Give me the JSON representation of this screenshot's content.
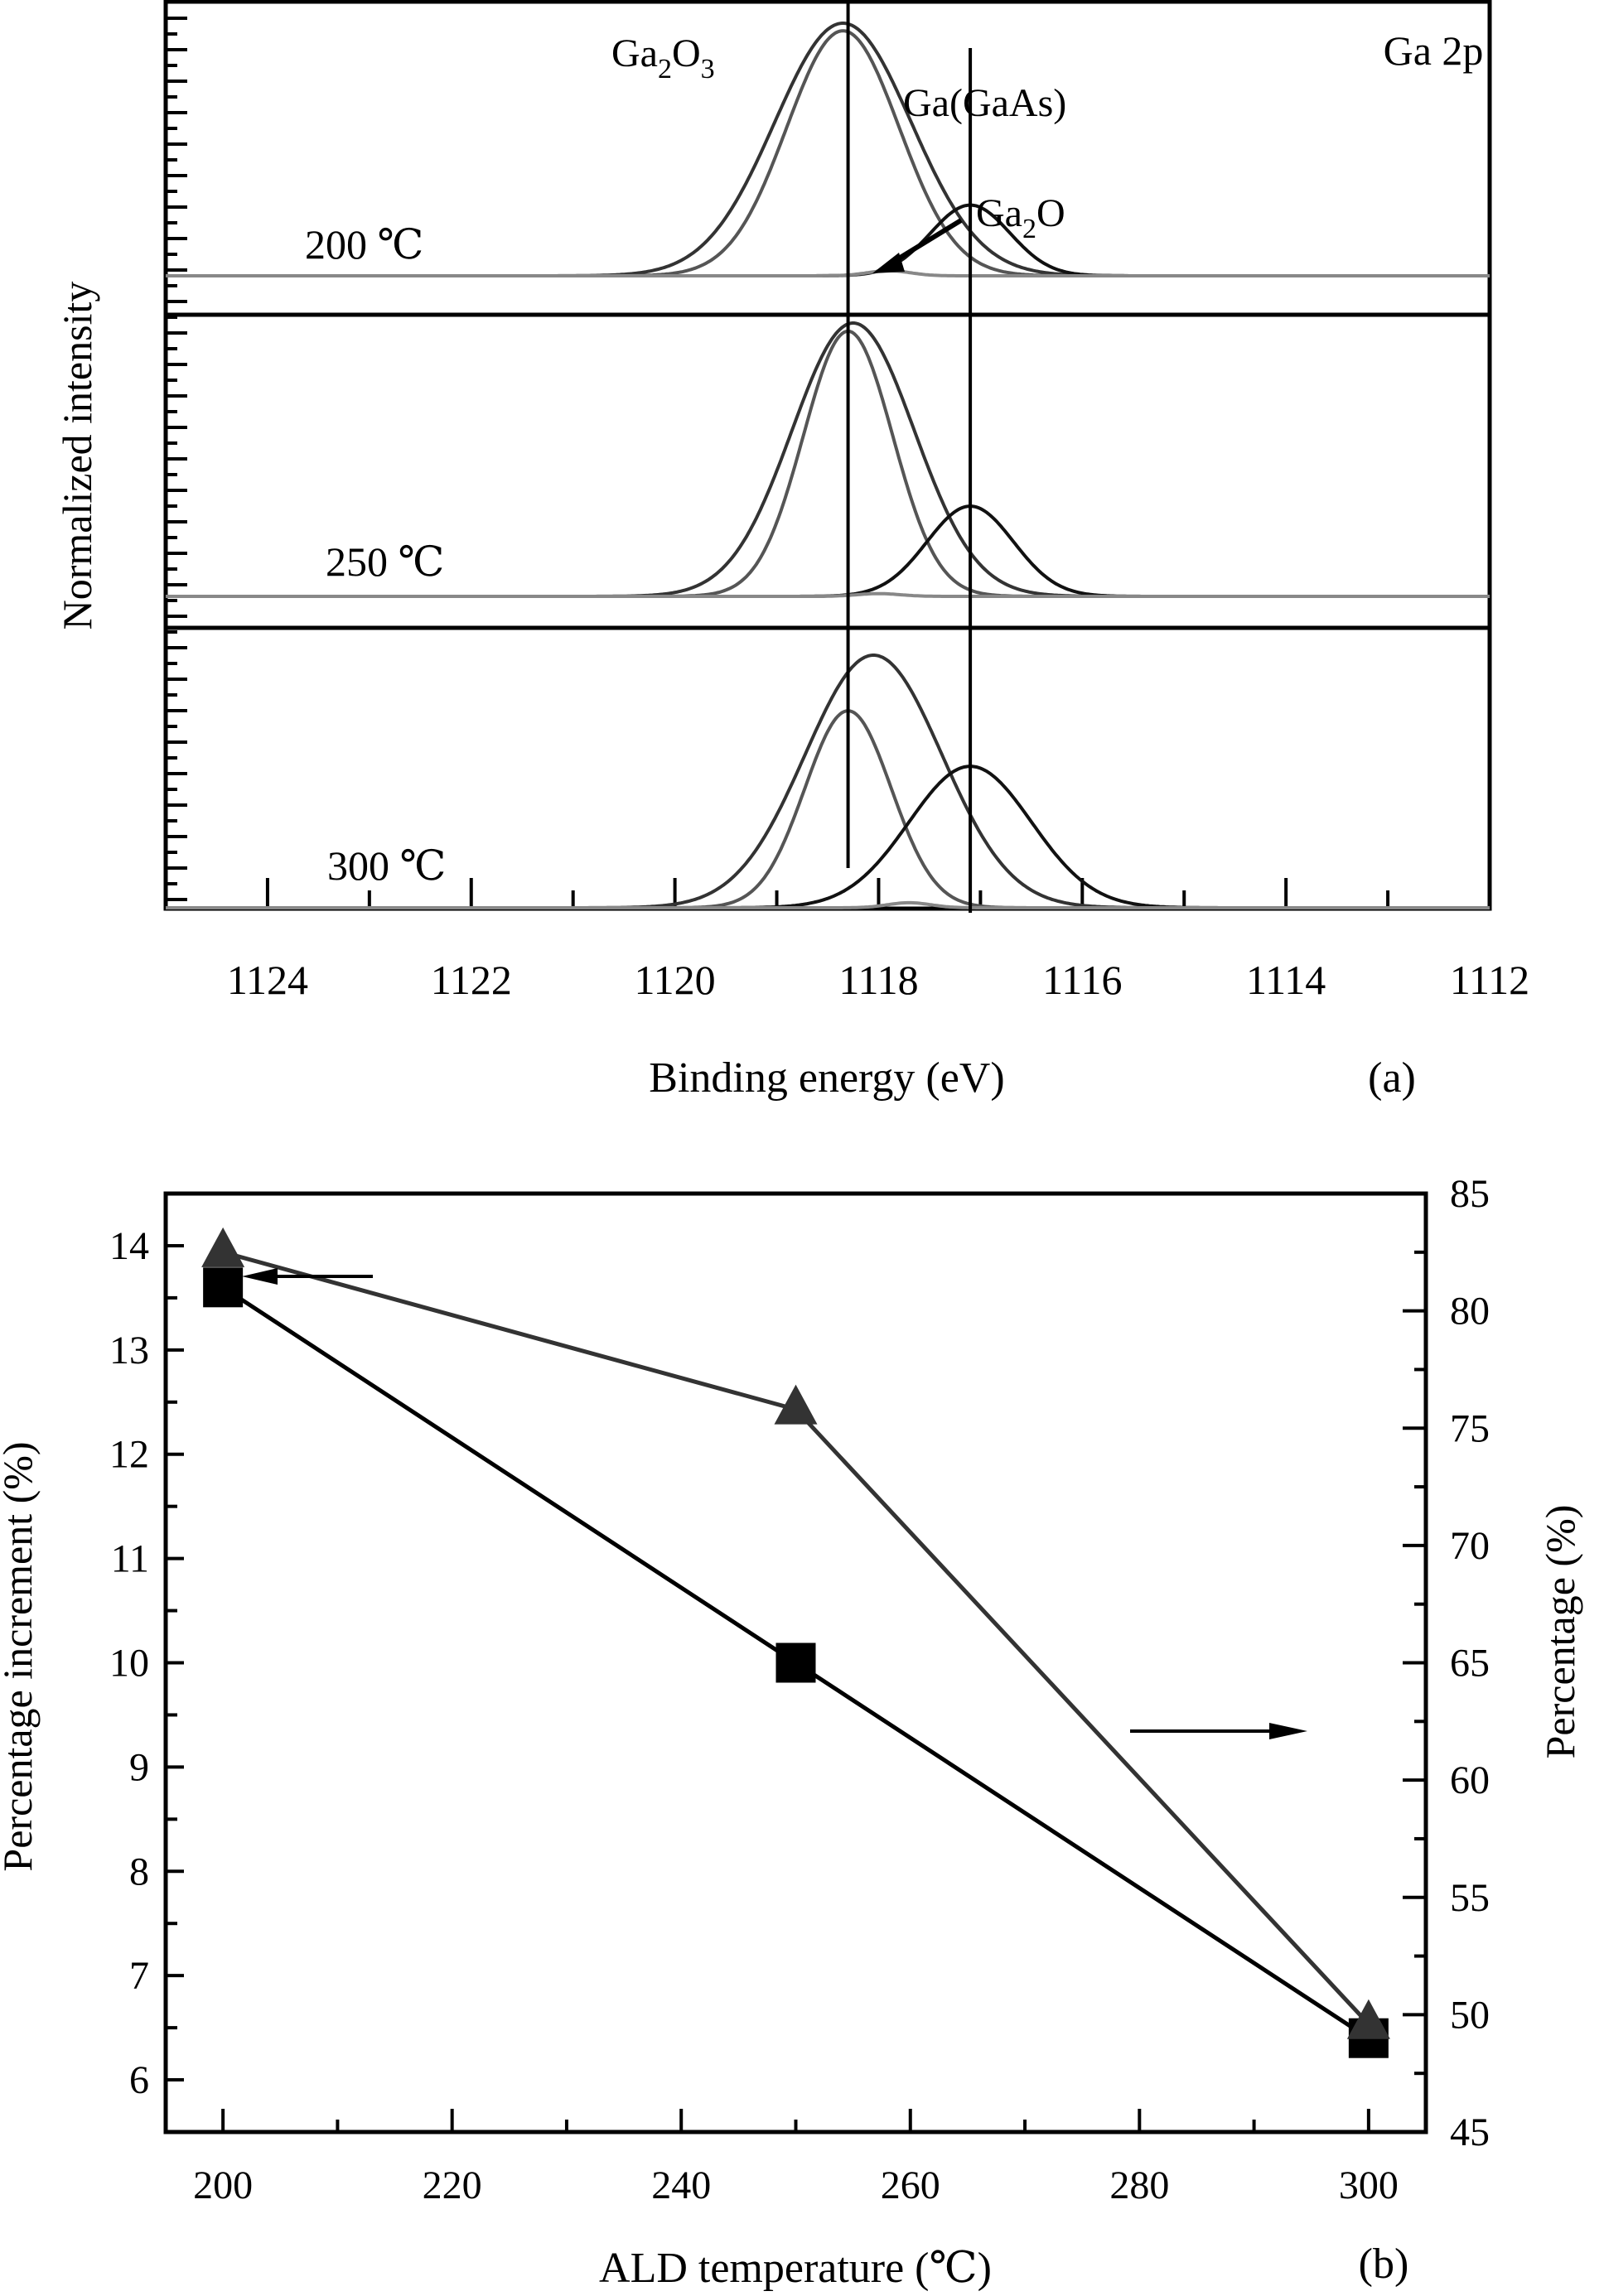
{
  "chart_data": [
    {
      "id": "a",
      "type": "line",
      "panel_label": "(a)",
      "title": "Ga 2p",
      "xlabel": "Binding energy  (eV)",
      "ylabel": "Normalized intensity",
      "xlim": [
        1125,
        1112
      ],
      "x_ticks": [
        "1124",
        "1122",
        "1120",
        "1118",
        "1116",
        "1114",
        "1112"
      ],
      "x_tick_values": [
        1124,
        1122,
        1120,
        1118,
        1116,
        1114,
        1112
      ],
      "reference_lines": [
        {
          "name": "Ga2O3",
          "x": 1118.3
        },
        {
          "name": "Ga(GaAs)",
          "x": 1117.1
        }
      ],
      "annotations": [
        {
          "text": "Ga",
          "sub": "2",
          "text2": "O",
          "sub2": "3",
          "label": "Ga2O3"
        },
        {
          "text": "Ga(GaAs)",
          "label": "Ga(GaAs)"
        },
        {
          "text": "Ga",
          "sub": "2",
          "text2": "O",
          "label": "Ga2O"
        }
      ],
      "panels": [
        {
          "label": "200 ℃",
          "series": [
            {
              "name": "envelope",
              "color": "#333333",
              "center": 1118.35,
              "height": 1.0,
              "width": 0.95
            },
            {
              "name": "Ga2O3",
              "color": "#555555",
              "center": 1118.35,
              "height": 0.97,
              "width": 0.78
            },
            {
              "name": "Ga(GaAs)",
              "color": "#111111",
              "center": 1117.1,
              "height": 0.28,
              "width": 0.55
            },
            {
              "name": "Ga2O",
              "color": "#888888",
              "center": 1117.9,
              "height": 0.02,
              "width": 0.3
            }
          ]
        },
        {
          "label": "250 ℃",
          "series": [
            {
              "name": "envelope",
              "color": "#333333",
              "center": 1118.25,
              "height": 1.0,
              "width": 0.85
            },
            {
              "name": "Ga2O3",
              "color": "#555555",
              "center": 1118.3,
              "height": 0.97,
              "width": 0.62
            },
            {
              "name": "Ga(GaAs)",
              "color": "#111111",
              "center": 1117.1,
              "height": 0.33,
              "width": 0.6
            },
            {
              "name": "Ga2O",
              "color": "#888888",
              "center": 1118.0,
              "height": 0.01,
              "width": 0.3
            }
          ]
        },
        {
          "label": "300 ℃",
          "series": [
            {
              "name": "envelope",
              "color": "#333333",
              "center": 1118.05,
              "height": 1.0,
              "width": 0.95
            },
            {
              "name": "Ga2O3",
              "color": "#555555",
              "center": 1118.3,
              "height": 0.78,
              "width": 0.6
            },
            {
              "name": "Ga(GaAs)",
              "color": "#111111",
              "center": 1117.1,
              "height": 0.56,
              "width": 0.85
            },
            {
              "name": "Ga2O",
              "color": "#888888",
              "center": 1117.7,
              "height": 0.02,
              "width": 0.3
            }
          ]
        }
      ]
    },
    {
      "id": "b",
      "type": "line",
      "panel_label": "(b)",
      "xlabel": "ALD temperature (℃)",
      "ylabel_left": "Percentage increment (%)",
      "ylabel_right": "Percentage (%)",
      "xlim": [
        195,
        305
      ],
      "ylim_left": [
        5.5,
        14.5
      ],
      "ylim_right": [
        45,
        85
      ],
      "x_ticks": [
        200,
        220,
        240,
        260,
        280,
        300
      ],
      "y_ticks_left": [
        6,
        7,
        8,
        9,
        10,
        11,
        12,
        13,
        14
      ],
      "y_ticks_right": [
        45,
        50,
        55,
        60,
        65,
        70,
        75,
        80,
        85
      ],
      "x": [
        200,
        250,
        300
      ],
      "series": [
        {
          "name": "Percentage increment",
          "axis": "left",
          "marker": "square",
          "color": "#000000",
          "values": [
            13.6,
            10.0,
            6.4
          ]
        },
        {
          "name": "Percentage",
          "axis": "right",
          "marker": "triangle",
          "color": "#333333",
          "values": [
            82.5,
            75.8,
            49.6
          ]
        }
      ],
      "axis_arrows": [
        {
          "direction": "left",
          "points_to": "left axis"
        },
        {
          "direction": "right",
          "points_to": "right axis"
        }
      ]
    }
  ]
}
